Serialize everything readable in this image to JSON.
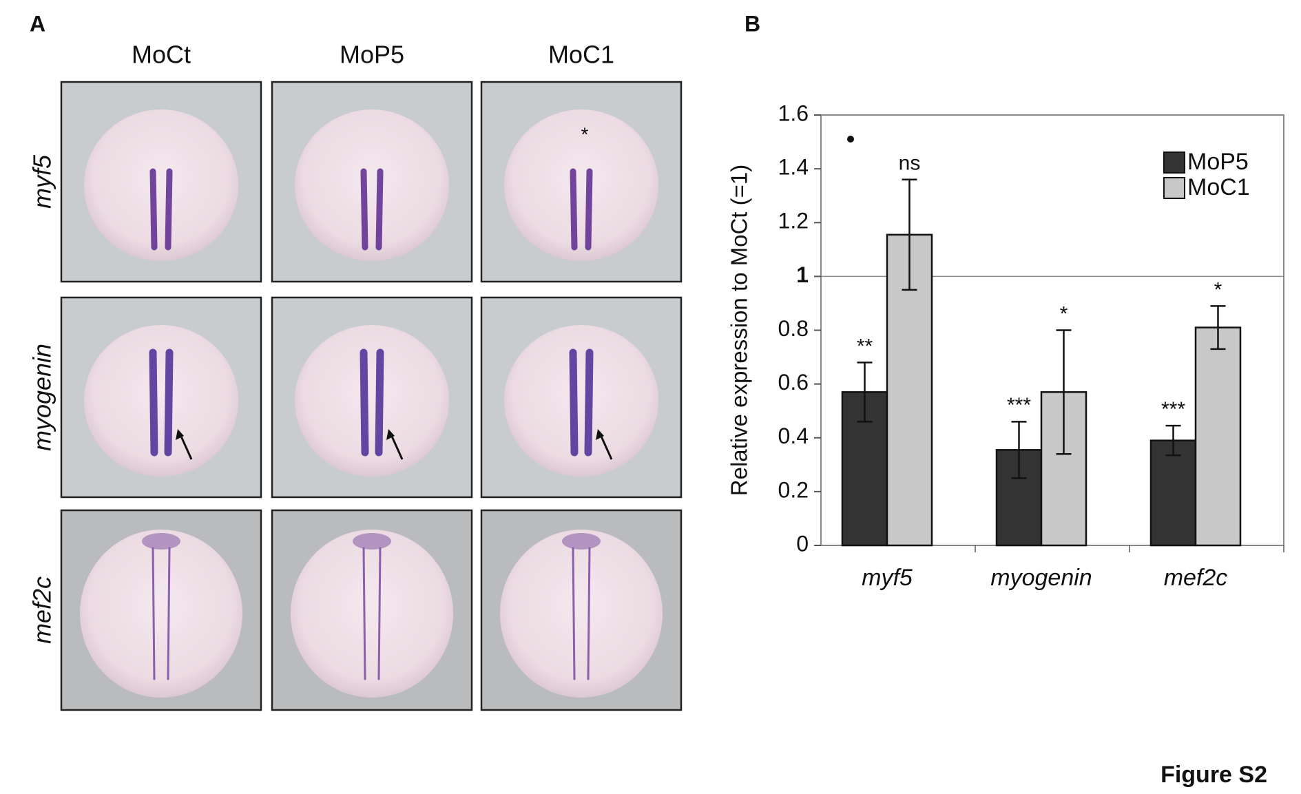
{
  "panel_a": {
    "label": "A",
    "columns": [
      "MoCt",
      "MoP5",
      "MoC1"
    ],
    "rows": [
      "myf5",
      "myogenin",
      "mef2c"
    ],
    "asterisk": "*"
  },
  "chart_data": {
    "type": "bar",
    "panel_label": "B",
    "y_label": "Relative expression to MoCt (=1)",
    "categories": [
      "myf5",
      "myogenin",
      "mef2c"
    ],
    "series": [
      {
        "name": "MoP5",
        "color": "#333333",
        "values": [
          0.57,
          0.355,
          0.39
        ],
        "errors": [
          0.11,
          0.105,
          0.055
        ],
        "significance": [
          "**",
          "***",
          "***"
        ]
      },
      {
        "name": "MoC1",
        "color": "#c8c8c8",
        "values": [
          1.155,
          0.57,
          0.81
        ],
        "errors": [
          0.205,
          0.23,
          0.08
        ],
        "significance": [
          "ns",
          "*",
          "*"
        ]
      }
    ],
    "ylim": [
      0,
      1.6
    ],
    "yticks": [
      0,
      0.2,
      0.4,
      0.6,
      0.8,
      1,
      1.2,
      1.4,
      1.6
    ],
    "reference_line": 1,
    "legend": "upper right"
  },
  "figure_label": "Figure S2"
}
